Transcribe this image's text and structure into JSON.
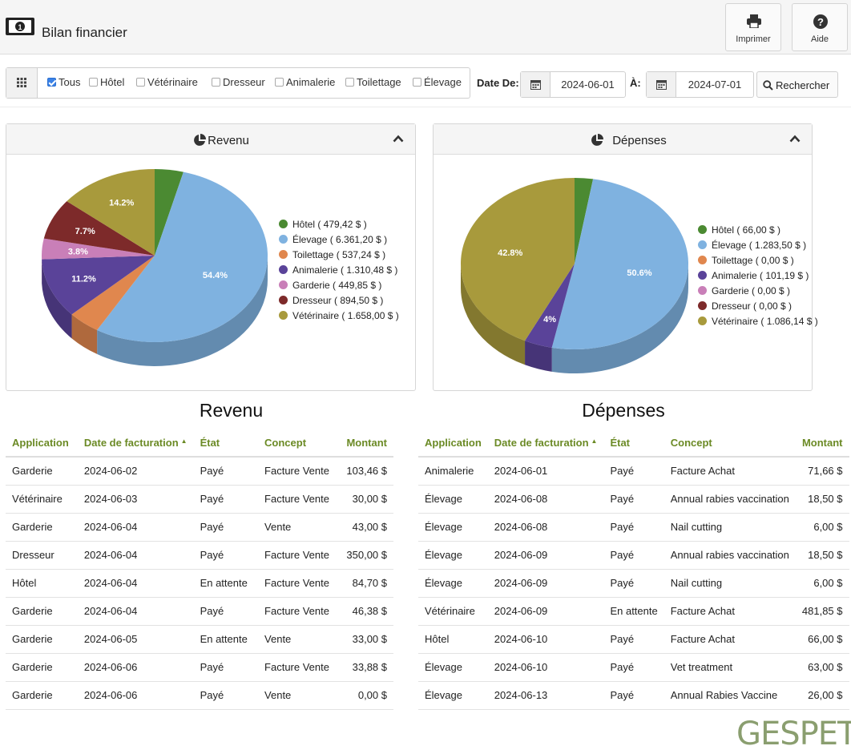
{
  "header": {
    "title": "Bilan financier",
    "print_label": "Imprimer",
    "help_label": "Aide"
  },
  "filters": {
    "options": [
      {
        "label": "Tous",
        "checked": true
      },
      {
        "label": "Hôtel",
        "checked": false
      },
      {
        "label": "Vétérinaire",
        "checked": false
      },
      {
        "label": "Dresseur",
        "checked": false
      },
      {
        "label": "Animalerie",
        "checked": false
      },
      {
        "label": "Toilettage",
        "checked": false
      },
      {
        "label": "Élevage",
        "checked": false
      }
    ],
    "date_from_label": "Date De:",
    "date_from": "2024-06-01",
    "date_to_label": "À:",
    "date_to": "2024-07-01",
    "search_label": "Rechercher"
  },
  "chart_data": [
    {
      "type": "pie",
      "title": "Revenu",
      "categories": [
        "Hôtel",
        "Élevage",
        "Toilettage",
        "Animalerie",
        "Garderie",
        "Dresseur",
        "Vétérinaire"
      ],
      "values": [
        479.42,
        6361.2,
        537.24,
        1310.48,
        449.85,
        894.5,
        1658.0
      ],
      "legend_labels": [
        "Hôtel ( 479,42 $ )",
        "Élevage ( 6.361,20 $ )",
        "Toilettage ( 537,24 $ )",
        "Animalerie ( 1.310,48 $ )",
        "Garderie ( 449,85 $ )",
        "Dresseur ( 894,50 $ )",
        "Vétérinaire ( 1.658,00 $ )"
      ],
      "data_labels": [
        "",
        "54.4%",
        "",
        "11.2%",
        "3.8%",
        "7.7%",
        "14.2%"
      ],
      "colors": [
        "#4b8a32",
        "#7fb2e0",
        "#e0874e",
        "#5a4399",
        "#c97fb8",
        "#7d2a2a",
        "#a89a3c"
      ],
      "legend_position": "right"
    },
    {
      "type": "pie",
      "title": "Dépenses",
      "categories": [
        "Hôtel",
        "Élevage",
        "Toilettage",
        "Animalerie",
        "Garderie",
        "Dresseur",
        "Vétérinaire"
      ],
      "values": [
        66.0,
        1283.5,
        0.0,
        101.19,
        0.0,
        0.0,
        1086.14
      ],
      "legend_labels": [
        "Hôtel ( 66,00 $ )",
        "Élevage ( 1.283,50 $ )",
        "Toilettage ( 0,00 $ )",
        "Animalerie ( 101,19 $ )",
        "Garderie ( 0,00 $ )",
        "Dresseur ( 0,00 $ )",
        "Vétérinaire ( 1.086,14 $ )"
      ],
      "data_labels": [
        "",
        "50.6%",
        "",
        "4%",
        "",
        "",
        "42.8%"
      ],
      "colors": [
        "#4b8a32",
        "#7fb2e0",
        "#e0874e",
        "#5a4399",
        "#c97fb8",
        "#7d2a2a",
        "#a89a3c"
      ],
      "legend_position": "right"
    }
  ],
  "revenue_table": {
    "title": "Revenu",
    "columns": [
      "Application",
      "Date de facturation",
      "État",
      "Concept",
      "Montant"
    ],
    "rows": [
      [
        "Garderie",
        "2024-06-02",
        "Payé",
        "Facture Vente",
        "103,46 $"
      ],
      [
        "Vétérinaire",
        "2024-06-03",
        "Payé",
        "Facture Vente",
        "30,00 $"
      ],
      [
        "Garderie",
        "2024-06-04",
        "Payé",
        "Vente",
        "43,00 $"
      ],
      [
        "Dresseur",
        "2024-06-04",
        "Payé",
        "Facture Vente",
        "350,00 $"
      ],
      [
        "Hôtel",
        "2024-06-04",
        "En attente",
        "Facture Vente",
        "84,70 $"
      ],
      [
        "Garderie",
        "2024-06-04",
        "Payé",
        "Facture Vente",
        "46,38 $"
      ],
      [
        "Garderie",
        "2024-06-05",
        "En attente",
        "Vente",
        "33,00 $"
      ],
      [
        "Garderie",
        "2024-06-06",
        "Payé",
        "Facture Vente",
        "33,88 $"
      ],
      [
        "Garderie",
        "2024-06-06",
        "Payé",
        "Vente",
        "0,00 $"
      ]
    ]
  },
  "expense_table": {
    "title": "Dépenses",
    "columns": [
      "Application",
      "Date de facturation",
      "État",
      "Concept",
      "Montant"
    ],
    "rows": [
      [
        "Animalerie",
        "2024-06-01",
        "Payé",
        "Facture Achat",
        "71,66 $"
      ],
      [
        "Élevage",
        "2024-06-08",
        "Payé",
        "Annual rabies vaccination",
        "18,50 $"
      ],
      [
        "Élevage",
        "2024-06-08",
        "Payé",
        "Nail cutting",
        "6,00 $"
      ],
      [
        "Élevage",
        "2024-06-09",
        "Payé",
        "Annual rabies vaccination",
        "18,50 $"
      ],
      [
        "Élevage",
        "2024-06-09",
        "Payé",
        "Nail cutting",
        "6,00 $"
      ],
      [
        "Vétérinaire",
        "2024-06-09",
        "En attente",
        "Facture Achat",
        "481,85 $"
      ],
      [
        "Hôtel",
        "2024-06-10",
        "Payé",
        "Facture Achat",
        "66,00 $"
      ],
      [
        "Élevage",
        "2024-06-10",
        "Payé",
        "Vet treatment",
        "63,00 $"
      ],
      [
        "Élevage",
        "2024-06-13",
        "Payé",
        "Annual Rabies Vaccine",
        "26,00 $"
      ]
    ]
  },
  "footer": {
    "logo_text": "GESPET"
  }
}
